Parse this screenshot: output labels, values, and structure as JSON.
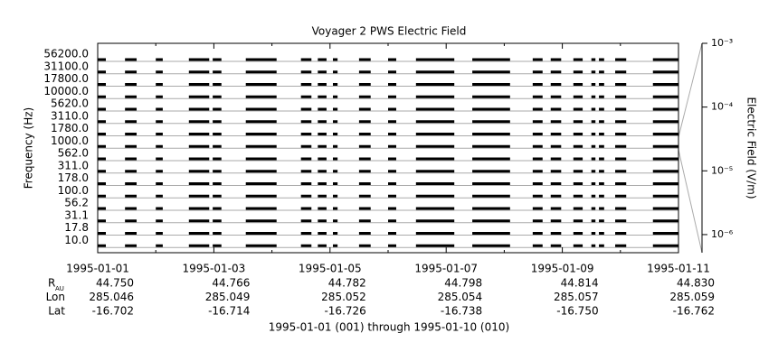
{
  "chart_data": {
    "type": "coverage",
    "title": "Voyager 2 PWS Electric Field",
    "y_label": "Frequency (Hz)",
    "y2_label": "Electric Field (V/m)",
    "footer": "1995-01-01 (001) through 1995-01-10 (010)",
    "channels": [
      "56200.0",
      "31100.0",
      "17800.0",
      "10000.0",
      "5620.0",
      "3110.0",
      "1780.0",
      "1000.0",
      "562.0",
      "311.0",
      "178.0",
      "100.0",
      "56.2",
      "31.1",
      "17.8",
      "10.0"
    ],
    "segments": [
      [
        0,
        0.14
      ],
      [
        0.47,
        0.67
      ],
      [
        1.0,
        1.12
      ],
      [
        1.57,
        1.92
      ],
      [
        1.98,
        2.13
      ],
      [
        2.55,
        3.08
      ],
      [
        3.5,
        3.68
      ],
      [
        3.79,
        3.94
      ],
      [
        4.05,
        4.13
      ],
      [
        4.5,
        4.7
      ],
      [
        5.0,
        5.14
      ],
      [
        5.48,
        6.14
      ],
      [
        6.45,
        7.1
      ],
      [
        7.49,
        7.66
      ],
      [
        7.8,
        7.98
      ],
      [
        8.19,
        8.35
      ],
      [
        8.5,
        8.57
      ],
      [
        8.63,
        8.72
      ],
      [
        8.91,
        9.1
      ],
      [
        9.56,
        10
      ]
    ],
    "color": "#000000",
    "xlim": [
      0,
      10
    ],
    "xticks": [
      {
        "value": 0,
        "label": "1995-01-01"
      },
      {
        "value": 2,
        "label": "1995-01-03"
      },
      {
        "value": 4,
        "label": "1995-01-05"
      },
      {
        "value": 6,
        "label": "1995-01-07"
      },
      {
        "value": 8,
        "label": "1995-01-09"
      },
      {
        "value": 10,
        "label": "1995-01-11"
      }
    ],
    "xminor": [
      1,
      3,
      5,
      7,
      9
    ],
    "y2lim": [
      0.001,
      5.2e-07
    ],
    "y2log": true,
    "y2ticks": [
      {
        "value": 0.001,
        "label": "10⁻³"
      },
      {
        "value": 0.0001,
        "label": "10⁻⁴"
      },
      {
        "value": 1e-05,
        "label": "10⁻⁵"
      },
      {
        "value": 1e-06,
        "label": "10⁻⁶"
      }
    ],
    "grid": true,
    "ephemeris": [
      {
        "label": "R",
        "sub": "AU",
        "values": [
          "44.750",
          "44.766",
          "44.782",
          "44.798",
          "44.814",
          "44.830"
        ]
      },
      {
        "label": "Lon",
        "values": [
          "285.046",
          "285.049",
          "285.052",
          "285.054",
          "285.057",
          "285.059"
        ]
      },
      {
        "label": "Lat",
        "values": [
          "-16.702",
          "-16.714",
          "-16.726",
          "-16.738",
          "-16.750",
          "-16.762"
        ]
      }
    ]
  }
}
